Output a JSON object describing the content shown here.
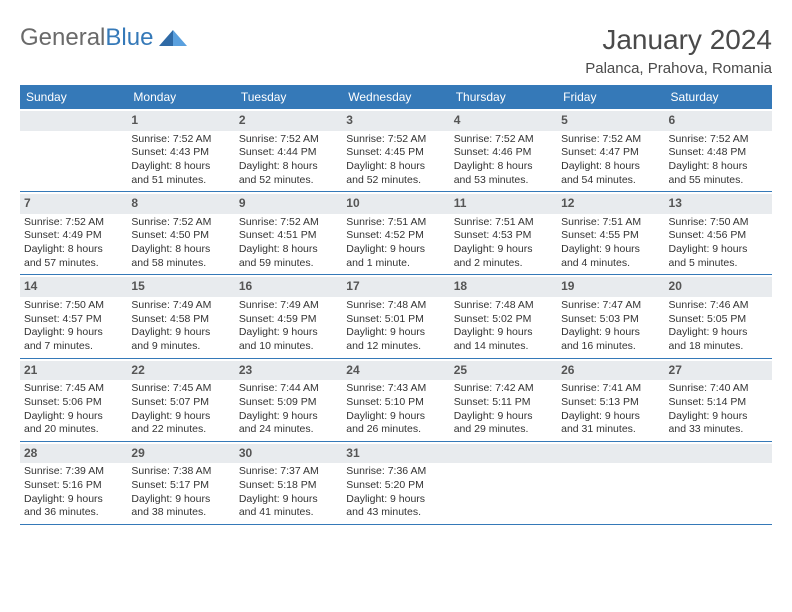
{
  "logo": {
    "text_general": "General",
    "text_blue": "Blue"
  },
  "title": "January 2024",
  "location": "Palanca, Prahova, Romania",
  "colors": {
    "header_bg": "#3579b8",
    "daynum_bg": "#e8ebee",
    "border": "#3579b8",
    "text": "#333333",
    "logo_gray": "#6a6a6a",
    "logo_blue": "#3579b8"
  },
  "dow": [
    "Sunday",
    "Monday",
    "Tuesday",
    "Wednesday",
    "Thursday",
    "Friday",
    "Saturday"
  ],
  "weeks": [
    [
      {
        "n": "",
        "empty": true
      },
      {
        "n": "1",
        "sunrise": "Sunrise: 7:52 AM",
        "sunset": "Sunset: 4:43 PM",
        "d1": "Daylight: 8 hours",
        "d2": "and 51 minutes."
      },
      {
        "n": "2",
        "sunrise": "Sunrise: 7:52 AM",
        "sunset": "Sunset: 4:44 PM",
        "d1": "Daylight: 8 hours",
        "d2": "and 52 minutes."
      },
      {
        "n": "3",
        "sunrise": "Sunrise: 7:52 AM",
        "sunset": "Sunset: 4:45 PM",
        "d1": "Daylight: 8 hours",
        "d2": "and 52 minutes."
      },
      {
        "n": "4",
        "sunrise": "Sunrise: 7:52 AM",
        "sunset": "Sunset: 4:46 PM",
        "d1": "Daylight: 8 hours",
        "d2": "and 53 minutes."
      },
      {
        "n": "5",
        "sunrise": "Sunrise: 7:52 AM",
        "sunset": "Sunset: 4:47 PM",
        "d1": "Daylight: 8 hours",
        "d2": "and 54 minutes."
      },
      {
        "n": "6",
        "sunrise": "Sunrise: 7:52 AM",
        "sunset": "Sunset: 4:48 PM",
        "d1": "Daylight: 8 hours",
        "d2": "and 55 minutes."
      }
    ],
    [
      {
        "n": "7",
        "sunrise": "Sunrise: 7:52 AM",
        "sunset": "Sunset: 4:49 PM",
        "d1": "Daylight: 8 hours",
        "d2": "and 57 minutes."
      },
      {
        "n": "8",
        "sunrise": "Sunrise: 7:52 AM",
        "sunset": "Sunset: 4:50 PM",
        "d1": "Daylight: 8 hours",
        "d2": "and 58 minutes."
      },
      {
        "n": "9",
        "sunrise": "Sunrise: 7:52 AM",
        "sunset": "Sunset: 4:51 PM",
        "d1": "Daylight: 8 hours",
        "d2": "and 59 minutes."
      },
      {
        "n": "10",
        "sunrise": "Sunrise: 7:51 AM",
        "sunset": "Sunset: 4:52 PM",
        "d1": "Daylight: 9 hours",
        "d2": "and 1 minute."
      },
      {
        "n": "11",
        "sunrise": "Sunrise: 7:51 AM",
        "sunset": "Sunset: 4:53 PM",
        "d1": "Daylight: 9 hours",
        "d2": "and 2 minutes."
      },
      {
        "n": "12",
        "sunrise": "Sunrise: 7:51 AM",
        "sunset": "Sunset: 4:55 PM",
        "d1": "Daylight: 9 hours",
        "d2": "and 4 minutes."
      },
      {
        "n": "13",
        "sunrise": "Sunrise: 7:50 AM",
        "sunset": "Sunset: 4:56 PM",
        "d1": "Daylight: 9 hours",
        "d2": "and 5 minutes."
      }
    ],
    [
      {
        "n": "14",
        "sunrise": "Sunrise: 7:50 AM",
        "sunset": "Sunset: 4:57 PM",
        "d1": "Daylight: 9 hours",
        "d2": "and 7 minutes."
      },
      {
        "n": "15",
        "sunrise": "Sunrise: 7:49 AM",
        "sunset": "Sunset: 4:58 PM",
        "d1": "Daylight: 9 hours",
        "d2": "and 9 minutes."
      },
      {
        "n": "16",
        "sunrise": "Sunrise: 7:49 AM",
        "sunset": "Sunset: 4:59 PM",
        "d1": "Daylight: 9 hours",
        "d2": "and 10 minutes."
      },
      {
        "n": "17",
        "sunrise": "Sunrise: 7:48 AM",
        "sunset": "Sunset: 5:01 PM",
        "d1": "Daylight: 9 hours",
        "d2": "and 12 minutes."
      },
      {
        "n": "18",
        "sunrise": "Sunrise: 7:48 AM",
        "sunset": "Sunset: 5:02 PM",
        "d1": "Daylight: 9 hours",
        "d2": "and 14 minutes."
      },
      {
        "n": "19",
        "sunrise": "Sunrise: 7:47 AM",
        "sunset": "Sunset: 5:03 PM",
        "d1": "Daylight: 9 hours",
        "d2": "and 16 minutes."
      },
      {
        "n": "20",
        "sunrise": "Sunrise: 7:46 AM",
        "sunset": "Sunset: 5:05 PM",
        "d1": "Daylight: 9 hours",
        "d2": "and 18 minutes."
      }
    ],
    [
      {
        "n": "21",
        "sunrise": "Sunrise: 7:45 AM",
        "sunset": "Sunset: 5:06 PM",
        "d1": "Daylight: 9 hours",
        "d2": "and 20 minutes."
      },
      {
        "n": "22",
        "sunrise": "Sunrise: 7:45 AM",
        "sunset": "Sunset: 5:07 PM",
        "d1": "Daylight: 9 hours",
        "d2": "and 22 minutes."
      },
      {
        "n": "23",
        "sunrise": "Sunrise: 7:44 AM",
        "sunset": "Sunset: 5:09 PM",
        "d1": "Daylight: 9 hours",
        "d2": "and 24 minutes."
      },
      {
        "n": "24",
        "sunrise": "Sunrise: 7:43 AM",
        "sunset": "Sunset: 5:10 PM",
        "d1": "Daylight: 9 hours",
        "d2": "and 26 minutes."
      },
      {
        "n": "25",
        "sunrise": "Sunrise: 7:42 AM",
        "sunset": "Sunset: 5:11 PM",
        "d1": "Daylight: 9 hours",
        "d2": "and 29 minutes."
      },
      {
        "n": "26",
        "sunrise": "Sunrise: 7:41 AM",
        "sunset": "Sunset: 5:13 PM",
        "d1": "Daylight: 9 hours",
        "d2": "and 31 minutes."
      },
      {
        "n": "27",
        "sunrise": "Sunrise: 7:40 AM",
        "sunset": "Sunset: 5:14 PM",
        "d1": "Daylight: 9 hours",
        "d2": "and 33 minutes."
      }
    ],
    [
      {
        "n": "28",
        "sunrise": "Sunrise: 7:39 AM",
        "sunset": "Sunset: 5:16 PM",
        "d1": "Daylight: 9 hours",
        "d2": "and 36 minutes."
      },
      {
        "n": "29",
        "sunrise": "Sunrise: 7:38 AM",
        "sunset": "Sunset: 5:17 PM",
        "d1": "Daylight: 9 hours",
        "d2": "and 38 minutes."
      },
      {
        "n": "30",
        "sunrise": "Sunrise: 7:37 AM",
        "sunset": "Sunset: 5:18 PM",
        "d1": "Daylight: 9 hours",
        "d2": "and 41 minutes."
      },
      {
        "n": "31",
        "sunrise": "Sunrise: 7:36 AM",
        "sunset": "Sunset: 5:20 PM",
        "d1": "Daylight: 9 hours",
        "d2": "and 43 minutes."
      },
      {
        "n": "",
        "empty": true
      },
      {
        "n": "",
        "empty": true
      },
      {
        "n": "",
        "empty": true
      }
    ]
  ]
}
